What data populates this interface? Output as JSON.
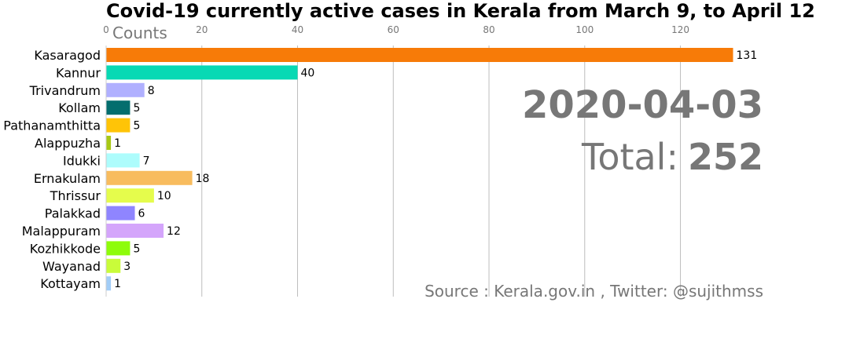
{
  "title": "Covid-19 currently active cases in Kerala from March 9, to April 12",
  "axis_label": "Counts",
  "date": "2020-04-03",
  "total_label": "Total:",
  "total_value": "252",
  "source": "Source : Kerala.gov.in , Twitter: @sujithmss",
  "chart_data": {
    "type": "bar",
    "orientation": "horizontal",
    "categories": [
      "Kasaragod",
      "Kannur",
      "Trivandrum",
      "Kollam",
      "Pathanamthitta",
      "Alappuzha",
      "Idukki",
      "Ernakulam",
      "Thrissur",
      "Palakkad",
      "Malappuram",
      "Kozhikkode",
      "Wayanad",
      "Kottayam"
    ],
    "values": [
      131,
      40,
      8,
      5,
      5,
      1,
      7,
      18,
      10,
      6,
      12,
      5,
      3,
      1
    ],
    "colors": [
      "#f77b08",
      "#08d9b4",
      "#b0b0ff",
      "#046e6e",
      "#ffc407",
      "#a8c814",
      "#adfcfc",
      "#f8bc5e",
      "#e5fc4c",
      "#8f85ff",
      "#d4a5fb",
      "#8efc0a",
      "#c9fc3a",
      "#a2cdf7"
    ],
    "xticks": [
      0,
      20,
      40,
      60,
      80,
      100,
      120
    ],
    "xlim": [
      0,
      137.5
    ],
    "axis_position": "top",
    "grid": "x"
  }
}
